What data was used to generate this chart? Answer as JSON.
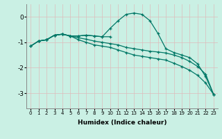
{
  "title": "",
  "xlabel": "Humidex (Indice chaleur)",
  "background_color": "#caf0e4",
  "line_color": "#007766",
  "grid_color": "#ddbbbb",
  "ylim": [
    -3.6,
    0.5
  ],
  "xlim": [
    -0.5,
    23.5
  ],
  "yticks": [
    0,
    -1,
    -2,
    -3
  ],
  "xticks": [
    0,
    1,
    2,
    3,
    4,
    5,
    6,
    7,
    8,
    9,
    10,
    11,
    12,
    13,
    14,
    15,
    16,
    17,
    18,
    19,
    20,
    21,
    22,
    23
  ],
  "lines": [
    {
      "x": [
        0,
        1,
        2,
        3,
        4,
        5,
        6,
        7,
        8,
        9,
        10,
        11,
        12,
        13,
        14,
        15,
        16,
        17,
        18,
        19,
        20,
        21,
        22,
        23
      ],
      "y": [
        -1.15,
        -0.95,
        -0.9,
        -0.72,
        -0.68,
        -0.75,
        -0.75,
        -0.72,
        -0.75,
        -0.78,
        -0.45,
        -0.15,
        0.1,
        0.15,
        0.1,
        -0.15,
        -0.65,
        -1.25,
        -1.4,
        -1.5,
        -1.6,
        -1.85,
        -2.35,
        -3.05
      ]
    },
    {
      "x": [
        1,
        2,
        3,
        4,
        5,
        6,
        7,
        8,
        9,
        10
      ],
      "y": [
        -0.95,
        -0.9,
        -0.72,
        -0.68,
        -0.75,
        -0.75,
        -0.72,
        -0.75,
        -0.78,
        -0.78
      ]
    },
    {
      "x": [
        0,
        1,
        2,
        3,
        4,
        5,
        6,
        7,
        8,
        9,
        10,
        11,
        12,
        13,
        14,
        15,
        16,
        17,
        18,
        19,
        20,
        21,
        22,
        23
      ],
      "y": [
        -1.15,
        -0.95,
        -0.9,
        -0.72,
        -0.68,
        -0.75,
        -0.82,
        -0.88,
        -0.95,
        -1.0,
        -1.05,
        -1.1,
        -1.2,
        -1.25,
        -1.3,
        -1.35,
        -1.38,
        -1.42,
        -1.5,
        -1.6,
        -1.75,
        -1.95,
        -2.25,
        -3.05
      ]
    },
    {
      "x": [
        0,
        1,
        2,
        3,
        4,
        5,
        6,
        7,
        8,
        9,
        10,
        11,
        12,
        13,
        14,
        15,
        16,
        17,
        18,
        19,
        20,
        21,
        22,
        23
      ],
      "y": [
        -1.15,
        -0.95,
        -0.9,
        -0.72,
        -0.68,
        -0.75,
        -0.9,
        -1.0,
        -1.1,
        -1.15,
        -1.2,
        -1.3,
        -1.4,
        -1.5,
        -1.55,
        -1.6,
        -1.65,
        -1.7,
        -1.82,
        -1.95,
        -2.1,
        -2.3,
        -2.6,
        -3.05
      ]
    }
  ]
}
